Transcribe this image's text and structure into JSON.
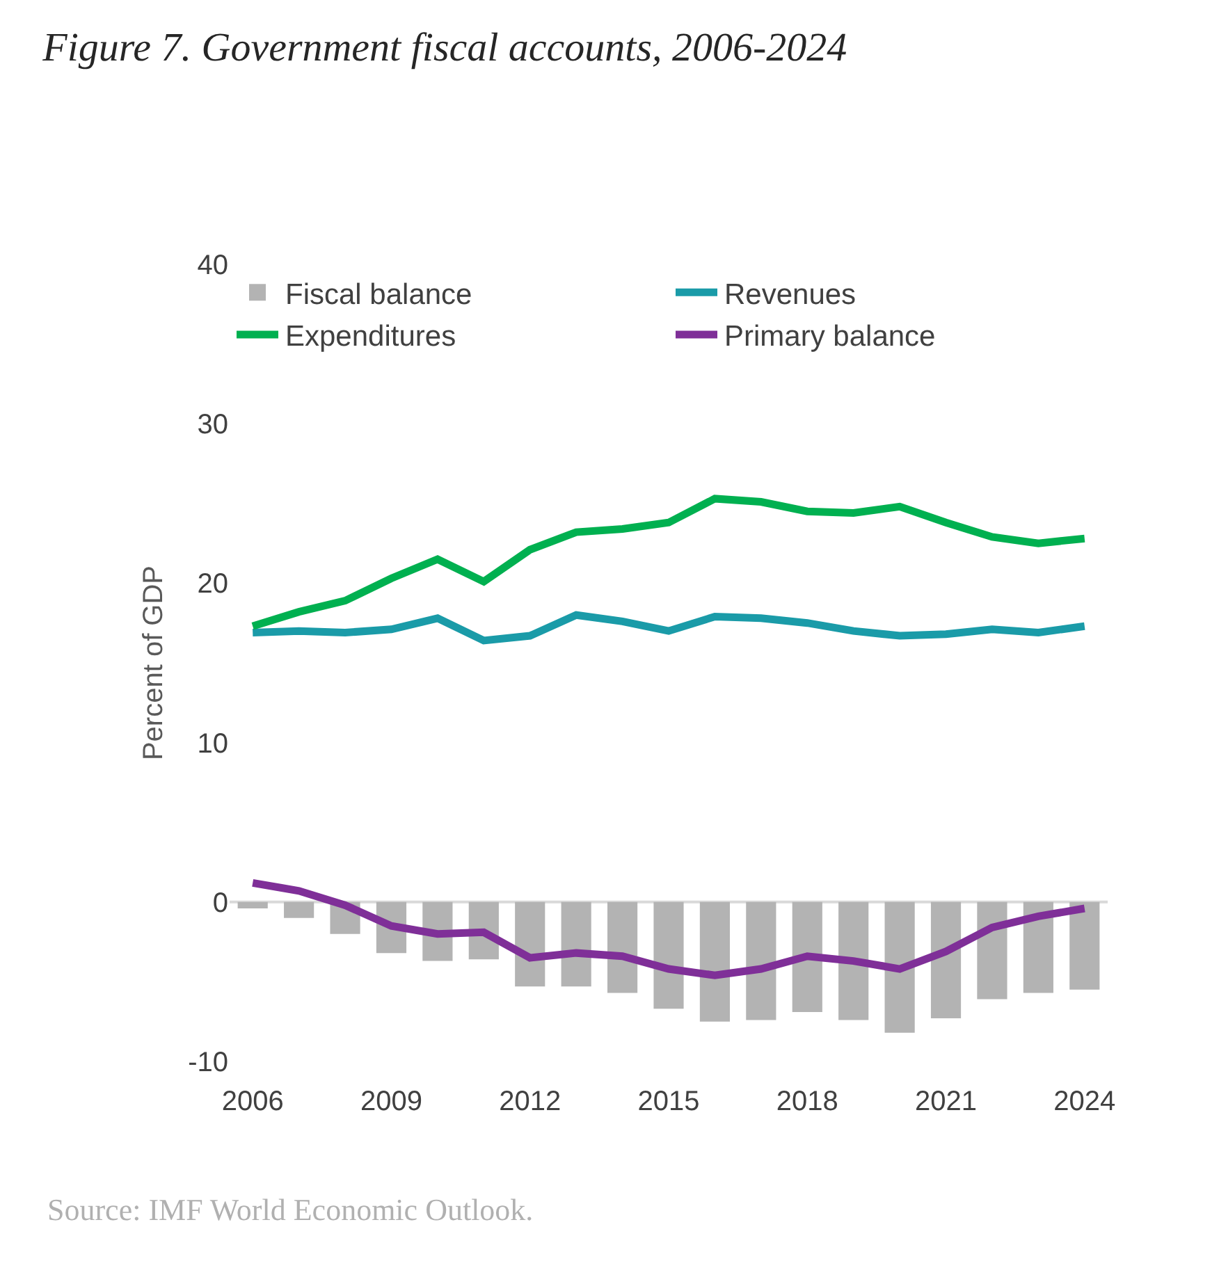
{
  "chart_data": {
    "type": "line",
    "title": "Figure 7. Government fiscal accounts, 2006-2024",
    "ylabel": "Percent of GDP",
    "x": [
      2006,
      2007,
      2008,
      2009,
      2010,
      2011,
      2012,
      2013,
      2014,
      2015,
      2016,
      2017,
      2018,
      2019,
      2020,
      2021,
      2022,
      2023,
      2024
    ],
    "xlim": [
      2005.5,
      2024.5
    ],
    "xticks": [
      2006,
      2009,
      2012,
      2015,
      2018,
      2021,
      2024
    ],
    "ylim": [
      -10,
      40
    ],
    "yticks": [
      -10,
      0,
      10,
      20,
      30,
      40
    ],
    "grid": false,
    "ref_lines": [
      {
        "axis": "y",
        "value": 0,
        "color": "#d9d9d9"
      }
    ],
    "legend": "top",
    "marker": "none",
    "line_style": "solid",
    "series": [
      {
        "name": "Fiscal balance",
        "type": "bar",
        "color": "#b3b3b3",
        "values": [
          -0.4,
          -1.0,
          -2.0,
          -3.2,
          -3.7,
          -3.6,
          -5.3,
          -5.3,
          -5.7,
          -6.7,
          -7.5,
          -7.4,
          -6.9,
          -7.4,
          -8.2,
          -7.3,
          -6.1,
          -5.7,
          -5.5
        ]
      },
      {
        "name": "Revenues",
        "color": "#1a9ba8",
        "values": [
          16.9,
          17.0,
          16.9,
          17.1,
          17.8,
          16.4,
          16.7,
          18.0,
          17.6,
          17.0,
          17.9,
          17.8,
          17.5,
          17.0,
          16.7,
          16.8,
          17.1,
          16.9,
          17.3
        ]
      },
      {
        "name": "Expenditures",
        "color": "#00b050",
        "values": [
          17.3,
          18.2,
          18.9,
          20.3,
          21.5,
          20.1,
          22.1,
          23.2,
          23.4,
          23.8,
          25.3,
          25.1,
          24.5,
          24.4,
          24.8,
          23.8,
          22.9,
          22.5,
          22.8
        ]
      },
      {
        "name": "Primary balance",
        "color": "#7f2f98",
        "values": [
          1.2,
          0.7,
          -0.2,
          -1.5,
          -2.0,
          -1.9,
          -3.5,
          -3.2,
          -3.4,
          -4.2,
          -4.6,
          -4.2,
          -3.4,
          -3.7,
          -4.2,
          -3.1,
          -1.6,
          -0.9,
          -0.4
        ]
      }
    ],
    "annotations": [
      "Source: IMF World Economic Outlook."
    ]
  }
}
